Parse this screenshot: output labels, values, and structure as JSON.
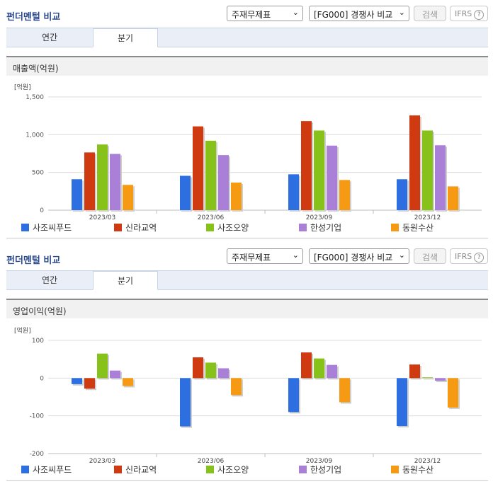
{
  "panels": [
    {
      "title": "펀더멘털 비교",
      "select_statement": "주재무제표",
      "select_compare": "[FG000] 경쟁사 비교",
      "search_label": "검색",
      "ifrs_label": "IFRS",
      "ifrs_help": "?",
      "tabs": [
        "연간",
        "분기"
      ],
      "active_tab": "분기",
      "subtitle": "매출액(억원)"
    },
    {
      "title": "펀더멘털 비교",
      "select_statement": "주재무제표",
      "select_compare": "[FG000] 경쟁사 비교",
      "search_label": "검색",
      "ifrs_label": "IFRS",
      "ifrs_help": "?",
      "tabs": [
        "연간",
        "분기"
      ],
      "active_tab": "분기",
      "subtitle": "영업이익(억원)"
    }
  ],
  "chart_data": [
    {
      "type": "bar",
      "unit_label": "[억원]",
      "categories": [
        "2023/03",
        "2023/06",
        "2023/09",
        "2023/12"
      ],
      "ylim": [
        0,
        1500
      ],
      "yticks": [
        0,
        500,
        1000,
        1500
      ],
      "ytick_labels": [
        "0",
        "500",
        "1,000",
        "1,500"
      ],
      "grid": true,
      "legend": "bottom",
      "series": [
        {
          "name": "사조씨푸드",
          "color": "#2d6fe0",
          "values": [
            410,
            455,
            475,
            410
          ]
        },
        {
          "name": "신라교역",
          "color": "#d03a10",
          "values": [
            765,
            1110,
            1180,
            1255
          ]
        },
        {
          "name": "사조오양",
          "color": "#86c21a",
          "values": [
            870,
            920,
            1055,
            1055
          ]
        },
        {
          "name": "한성기업",
          "color": "#a97fd8",
          "values": [
            745,
            730,
            855,
            860
          ]
        },
        {
          "name": "동원수산",
          "color": "#f59a12",
          "values": [
            335,
            365,
            400,
            315
          ]
        }
      ]
    },
    {
      "type": "bar",
      "unit_label": "[억원]",
      "categories": [
        "2023/03",
        "2023/06",
        "2023/09",
        "2023/12"
      ],
      "ylim": [
        -200,
        100
      ],
      "yticks": [
        -200,
        -100,
        0,
        100
      ],
      "ytick_labels": [
        "-200",
        "-100",
        "0",
        "100"
      ],
      "grid": true,
      "legend": "bottom",
      "series": [
        {
          "name": "사조씨푸드",
          "color": "#2d6fe0",
          "values": [
            -16,
            -128,
            -90,
            -127
          ]
        },
        {
          "name": "신라교역",
          "color": "#d03a10",
          "values": [
            -28,
            55,
            68,
            36
          ]
        },
        {
          "name": "사조오양",
          "color": "#86c21a",
          "values": [
            65,
            41,
            52,
            2
          ]
        },
        {
          "name": "한성기업",
          "color": "#a97fd8",
          "values": [
            20,
            26,
            35,
            -7
          ]
        },
        {
          "name": "동원수산",
          "color": "#f59a12",
          "values": [
            -21,
            -45,
            -64,
            -78
          ]
        }
      ]
    }
  ]
}
